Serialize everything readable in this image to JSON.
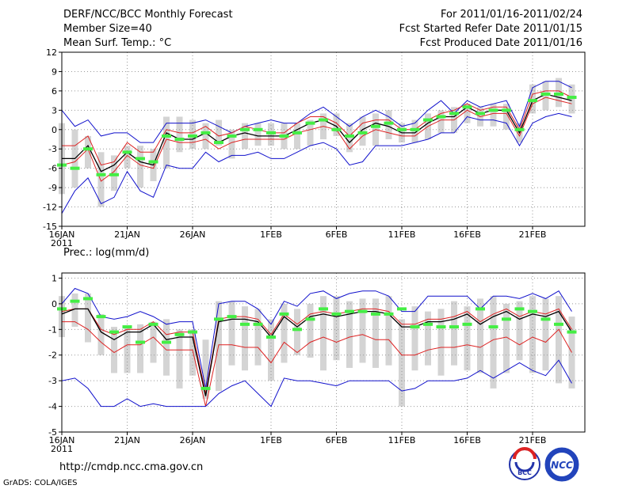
{
  "header": {
    "title": "DERF/NCC/BCC Monthly Forecast",
    "member_size": "Member Size=40",
    "variable": "Mean Surf. Temp.: °C",
    "period": "For 2011/01/16-2011/02/24",
    "fcst_started": "Fcst Started Refer Date 2011/01/15",
    "fcst_produced": "Fcst Produced Date 2011/01/16"
  },
  "footer": {
    "url": "http://cmdp.ncc.cma.gov.cn",
    "grads": "GrADS: COLA/IGES",
    "logo_bcc": "BCC",
    "logo_ncc": "NCC"
  },
  "colors": {
    "ensemble_bar": "#d4d4d4",
    "mean": "#000000",
    "spread_inner": "#dd2222",
    "spread_outer": "#1111cc",
    "observed": "#44ee44",
    "grid": "#999999"
  },
  "chart_data": [
    {
      "type": "line",
      "title": "Mean Surf. Temp.: °C",
      "ylabel": "°C",
      "ylim": [
        -15,
        12
      ],
      "yticks": [
        -15,
        -12,
        -9,
        -6,
        -3,
        0,
        3,
        6,
        9,
        12
      ],
      "xlim": [
        16,
        56
      ],
      "xticks": [
        {
          "x": 16,
          "label": "16JAN",
          "sub": "2011"
        },
        {
          "x": 21,
          "label": "21JAN"
        },
        {
          "x": 26,
          "label": "26JAN"
        },
        {
          "x": 32,
          "label": "1FEB"
        },
        {
          "x": 37,
          "label": "6FEB"
        },
        {
          "x": 42,
          "label": "11FEB"
        },
        {
          "x": 47,
          "label": "16FEB"
        },
        {
          "x": 52,
          "label": "21FEB"
        }
      ],
      "grid": true,
      "x": [
        16,
        17,
        18,
        19,
        20,
        21,
        22,
        23,
        24,
        25,
        26,
        27,
        28,
        29,
        30,
        31,
        32,
        33,
        34,
        35,
        36,
        37,
        38,
        39,
        40,
        41,
        42,
        43,
        44,
        45,
        46,
        47,
        48,
        49,
        50,
        51,
        52,
        53,
        54,
        55
      ],
      "bar_low": [
        -10,
        -9,
        -6,
        -12,
        -9.5,
        -6,
        -9,
        -8,
        -6,
        -3.5,
        -3,
        -3,
        -2.5,
        -4.5,
        -3,
        -2.5,
        -2.5,
        -3,
        -3,
        -2.5,
        -1.5,
        -1,
        -3.5,
        -2.5,
        -2.5,
        -1.5,
        -2,
        -2,
        -1.5,
        -0.5,
        -0.5,
        1,
        0.5,
        0.5,
        0,
        -2,
        2.5,
        3,
        3.5,
        2.5
      ],
      "bar_high": [
        1,
        0,
        -1,
        -3.5,
        -4,
        -2.5,
        -2.5,
        -3,
        2,
        2,
        1.5,
        1,
        1.5,
        0,
        1,
        1,
        1,
        1,
        1,
        1.5,
        2.5,
        2.5,
        1,
        2,
        2.5,
        3,
        1,
        1.5,
        2.5,
        3,
        3.5,
        4,
        3.5,
        4,
        4,
        1,
        7,
        7.5,
        8,
        7
      ],
      "series": [
        {
          "name": "max",
          "role": "spread_outer",
          "values": [
            3,
            0.5,
            1.5,
            -1,
            -0.5,
            -0.5,
            -2,
            -2,
            1,
            1,
            1,
            1.5,
            0.5,
            -0.5,
            0.5,
            1,
            1.5,
            1,
            1,
            2.5,
            3.5,
            2,
            0.5,
            2,
            3,
            2,
            0.5,
            1,
            3,
            4.5,
            2.5,
            4.5,
            3.5,
            4,
            4.5,
            0.5,
            6.5,
            7.5,
            7.5,
            6.5
          ]
        },
        {
          "name": "upper",
          "role": "spread_inner",
          "values": [
            -2.5,
            -2.5,
            -1,
            -5.5,
            -5,
            -2,
            -3.5,
            -3.5,
            0,
            -0.5,
            -0.5,
            0.5,
            -1,
            -0.5,
            0.5,
            0,
            -0.5,
            -0.5,
            1,
            2,
            2,
            1,
            -1,
            1,
            1.5,
            1.5,
            0,
            0,
            1.5,
            2.5,
            3,
            4,
            3,
            3.5,
            3.5,
            0,
            5.5,
            6,
            6,
            5
          ]
        },
        {
          "name": "mean",
          "role": "mean",
          "values": [
            -4.5,
            -4.5,
            -2.5,
            -6.5,
            -5.5,
            -3.5,
            -5,
            -5.5,
            -0.5,
            -1.5,
            -1.5,
            -0.5,
            -2,
            -1,
            -0.5,
            -1,
            -1,
            -1,
            0,
            1,
            1.5,
            0.5,
            -2,
            0,
            1,
            0.5,
            -0.5,
            -0.5,
            1,
            2,
            2,
            3.5,
            2.5,
            3,
            3,
            -0.5,
            4.5,
            5.5,
            5,
            4.5
          ]
        },
        {
          "name": "lower",
          "role": "spread_inner",
          "values": [
            -5.5,
            -5,
            -3,
            -8,
            -6.5,
            -4,
            -5.5,
            -6,
            -1.5,
            -2,
            -2,
            -1.5,
            -3,
            -2,
            -1.5,
            -1.5,
            -1.5,
            -1.5,
            -0.5,
            0,
            0.5,
            0,
            -3,
            -1,
            0,
            -0.5,
            -1,
            -1,
            0.5,
            1.5,
            1.5,
            3,
            2,
            2.5,
            2.5,
            -1,
            4,
            5,
            4.5,
            4
          ]
        },
        {
          "name": "min",
          "role": "spread_outer",
          "values": [
            -13,
            -9.5,
            -7.5,
            -11.5,
            -10.5,
            -6.5,
            -9.5,
            -10.5,
            -5.5,
            -6,
            -6,
            -3.5,
            -5,
            -4,
            -4,
            -3.5,
            -4.5,
            -4.5,
            -3.5,
            -2.5,
            -2,
            -3,
            -5.5,
            -5,
            -2.5,
            -2.5,
            -2.5,
            -2,
            -1.5,
            -0.5,
            -0.5,
            2,
            1.5,
            1.5,
            1,
            -2.5,
            1,
            2,
            2.5,
            2
          ]
        },
        {
          "name": "observed",
          "role": "observed",
          "values": [
            -5.5,
            -6,
            -3,
            -7,
            -7,
            -3.5,
            -4.5,
            -5,
            -1,
            -1.5,
            -1,
            -0.5,
            -2,
            -1,
            0,
            0,
            -0.5,
            -1,
            -0.5,
            1,
            1.5,
            0,
            -1,
            -0.5,
            0.5,
            1,
            0,
            0,
            1.5,
            2,
            2.5,
            3.5,
            2.5,
            3,
            3,
            0,
            4.5,
            5.5,
            5.5,
            5
          ]
        }
      ]
    },
    {
      "type": "line",
      "title": "Prec.: log(mm/d)",
      "ylabel": "log(mm/d)",
      "ylim": [
        -5,
        1.2
      ],
      "yticks": [
        -5,
        -4,
        -3,
        -2,
        -1,
        0,
        1
      ],
      "xlim": [
        16,
        56
      ],
      "xticks": [
        {
          "x": 16,
          "label": "16JAN",
          "sub": "2011"
        },
        {
          "x": 21,
          "label": "21JAN"
        },
        {
          "x": 26,
          "label": "26JAN"
        },
        {
          "x": 32,
          "label": "1FEB"
        },
        {
          "x": 37,
          "label": "6FEB"
        },
        {
          "x": 42,
          "label": "11FEB"
        },
        {
          "x": 47,
          "label": "16FEB"
        },
        {
          "x": 52,
          "label": "21FEB"
        }
      ],
      "grid": true,
      "x": [
        16,
        17,
        18,
        19,
        20,
        21,
        22,
        23,
        24,
        25,
        26,
        27,
        28,
        29,
        30,
        31,
        32,
        33,
        34,
        35,
        36,
        37,
        38,
        39,
        40,
        41,
        42,
        43,
        44,
        45,
        46,
        47,
        48,
        49,
        50,
        51,
        52,
        53,
        54,
        55
      ],
      "bar_low": [
        -1.3,
        -0.9,
        -1.5,
        -2,
        -2.7,
        -2.7,
        -2.7,
        -2.3,
        -2.8,
        -3.3,
        -2.8,
        -3.7,
        -3.4,
        -2.4,
        -2.6,
        -2.4,
        -3,
        -2.3,
        -2,
        -2.1,
        -2.6,
        -2.2,
        -2.5,
        -2.3,
        -2.5,
        -2.4,
        -4,
        -2.6,
        -2.4,
        -2.8,
        -2.4,
        -2.6,
        -2.7,
        -3.3,
        -2.7,
        -2.2,
        -2.7,
        -2.6,
        -3.1,
        -3.3
      ],
      "bar_high": [
        0.3,
        0.4,
        0.4,
        -0.4,
        -0.9,
        -0.9,
        -0.8,
        -0.7,
        -0.6,
        -1,
        -1,
        -1.4,
        0.1,
        0.1,
        -0.1,
        -0.2,
        -0.6,
        0,
        -0.2,
        0,
        0.3,
        0.3,
        0.1,
        0.2,
        0.2,
        0.3,
        -0.6,
        -0.1,
        -0.3,
        -0.2,
        0.1,
        -0.1,
        0.2,
        0.3,
        0,
        0.1,
        0.3,
        0.2,
        0.3,
        -0.5
      ],
      "series": [
        {
          "name": "max",
          "role": "spread_outer",
          "values": [
            0,
            0.6,
            0.4,
            -0.5,
            -0.6,
            -0.5,
            -0.3,
            -0.5,
            -0.8,
            -0.7,
            -0.7,
            -3.3,
            0,
            0.1,
            0.1,
            -0.2,
            -0.8,
            0.1,
            -0.1,
            0.4,
            0.5,
            0.2,
            0.4,
            0.5,
            0.5,
            0.3,
            -0.3,
            -0.3,
            0.3,
            0.3,
            0.3,
            0.3,
            -0.2,
            0.3,
            0.3,
            0.2,
            0.4,
            0.2,
            0.5,
            -0.3
          ]
        },
        {
          "name": "upper",
          "role": "spread_inner",
          "values": [
            -0.3,
            -0.2,
            -0.2,
            -1,
            -1.2,
            -1,
            -1,
            -0.7,
            -1.2,
            -1.1,
            -1.1,
            -3.5,
            -0.6,
            -0.5,
            -0.5,
            -0.6,
            -1.2,
            -0.4,
            -0.8,
            -0.4,
            -0.3,
            -0.4,
            -0.3,
            -0.2,
            -0.2,
            -0.3,
            -0.8,
            -0.8,
            -0.6,
            -0.6,
            -0.5,
            -0.3,
            -0.7,
            -0.4,
            -0.2,
            -0.5,
            -0.3,
            -0.4,
            -0.2,
            -1
          ]
        },
        {
          "name": "mean",
          "role": "mean",
          "values": [
            -0.4,
            -0.2,
            -0.2,
            -1.1,
            -1.4,
            -1.1,
            -1.1,
            -0.8,
            -1.4,
            -1.3,
            -1.3,
            -3.6,
            -0.7,
            -0.6,
            -0.6,
            -0.7,
            -1.3,
            -0.5,
            -0.9,
            -0.5,
            -0.4,
            -0.5,
            -0.4,
            -0.3,
            -0.3,
            -0.4,
            -0.9,
            -0.9,
            -0.7,
            -0.7,
            -0.6,
            -0.4,
            -0.8,
            -0.5,
            -0.3,
            -0.6,
            -0.4,
            -0.5,
            -0.3,
            -1.1
          ]
        },
        {
          "name": "lower",
          "role": "spread_inner",
          "values": [
            -0.7,
            -0.7,
            -1,
            -1.5,
            -1.9,
            -1.6,
            -1.6,
            -1.3,
            -1.8,
            -1.8,
            -1.8,
            -4,
            -1.6,
            -1.6,
            -1.7,
            -1.7,
            -2.3,
            -1.5,
            -1.9,
            -1.5,
            -1.3,
            -1.5,
            -1.3,
            -1.2,
            -1.4,
            -1.4,
            -2,
            -2,
            -1.8,
            -1.7,
            -1.7,
            -1.6,
            -1.7,
            -1.4,
            -1.3,
            -1.6,
            -1.3,
            -1.5,
            -1,
            -1.9
          ]
        },
        {
          "name": "min",
          "role": "spread_outer",
          "values": [
            -3,
            -2.9,
            -3.3,
            -4,
            -4,
            -3.7,
            -4,
            -3.9,
            -4,
            -4,
            -4,
            -4,
            -3.5,
            -3.2,
            -3,
            -3.5,
            -4,
            -2.9,
            -3,
            -3,
            -3.1,
            -3.2,
            -3,
            -3,
            -3,
            -3,
            -3.4,
            -3.3,
            -3,
            -3,
            -3,
            -2.9,
            -2.6,
            -2.9,
            -2.6,
            -2.3,
            -2.6,
            -2.8,
            -2.2,
            -3.1
          ]
        },
        {
          "name": "observed",
          "role": "observed",
          "values": [
            -0.2,
            0.1,
            0.2,
            -0.5,
            -1.1,
            -0.9,
            -1.5,
            -0.8,
            -1.5,
            -1.2,
            -1.1,
            -3.3,
            -0.6,
            -0.5,
            -0.8,
            -0.8,
            -1.3,
            -0.4,
            -1,
            -0.6,
            -0.2,
            -0.4,
            -0.3,
            -0.3,
            -0.4,
            -0.4,
            -0.2,
            -0.9,
            -0.8,
            -0.9,
            -0.9,
            -0.8,
            -0.2,
            -0.9,
            -0.6,
            -0.2,
            -0.3,
            -0.6,
            -0.8,
            -1.1
          ]
        }
      ]
    }
  ]
}
